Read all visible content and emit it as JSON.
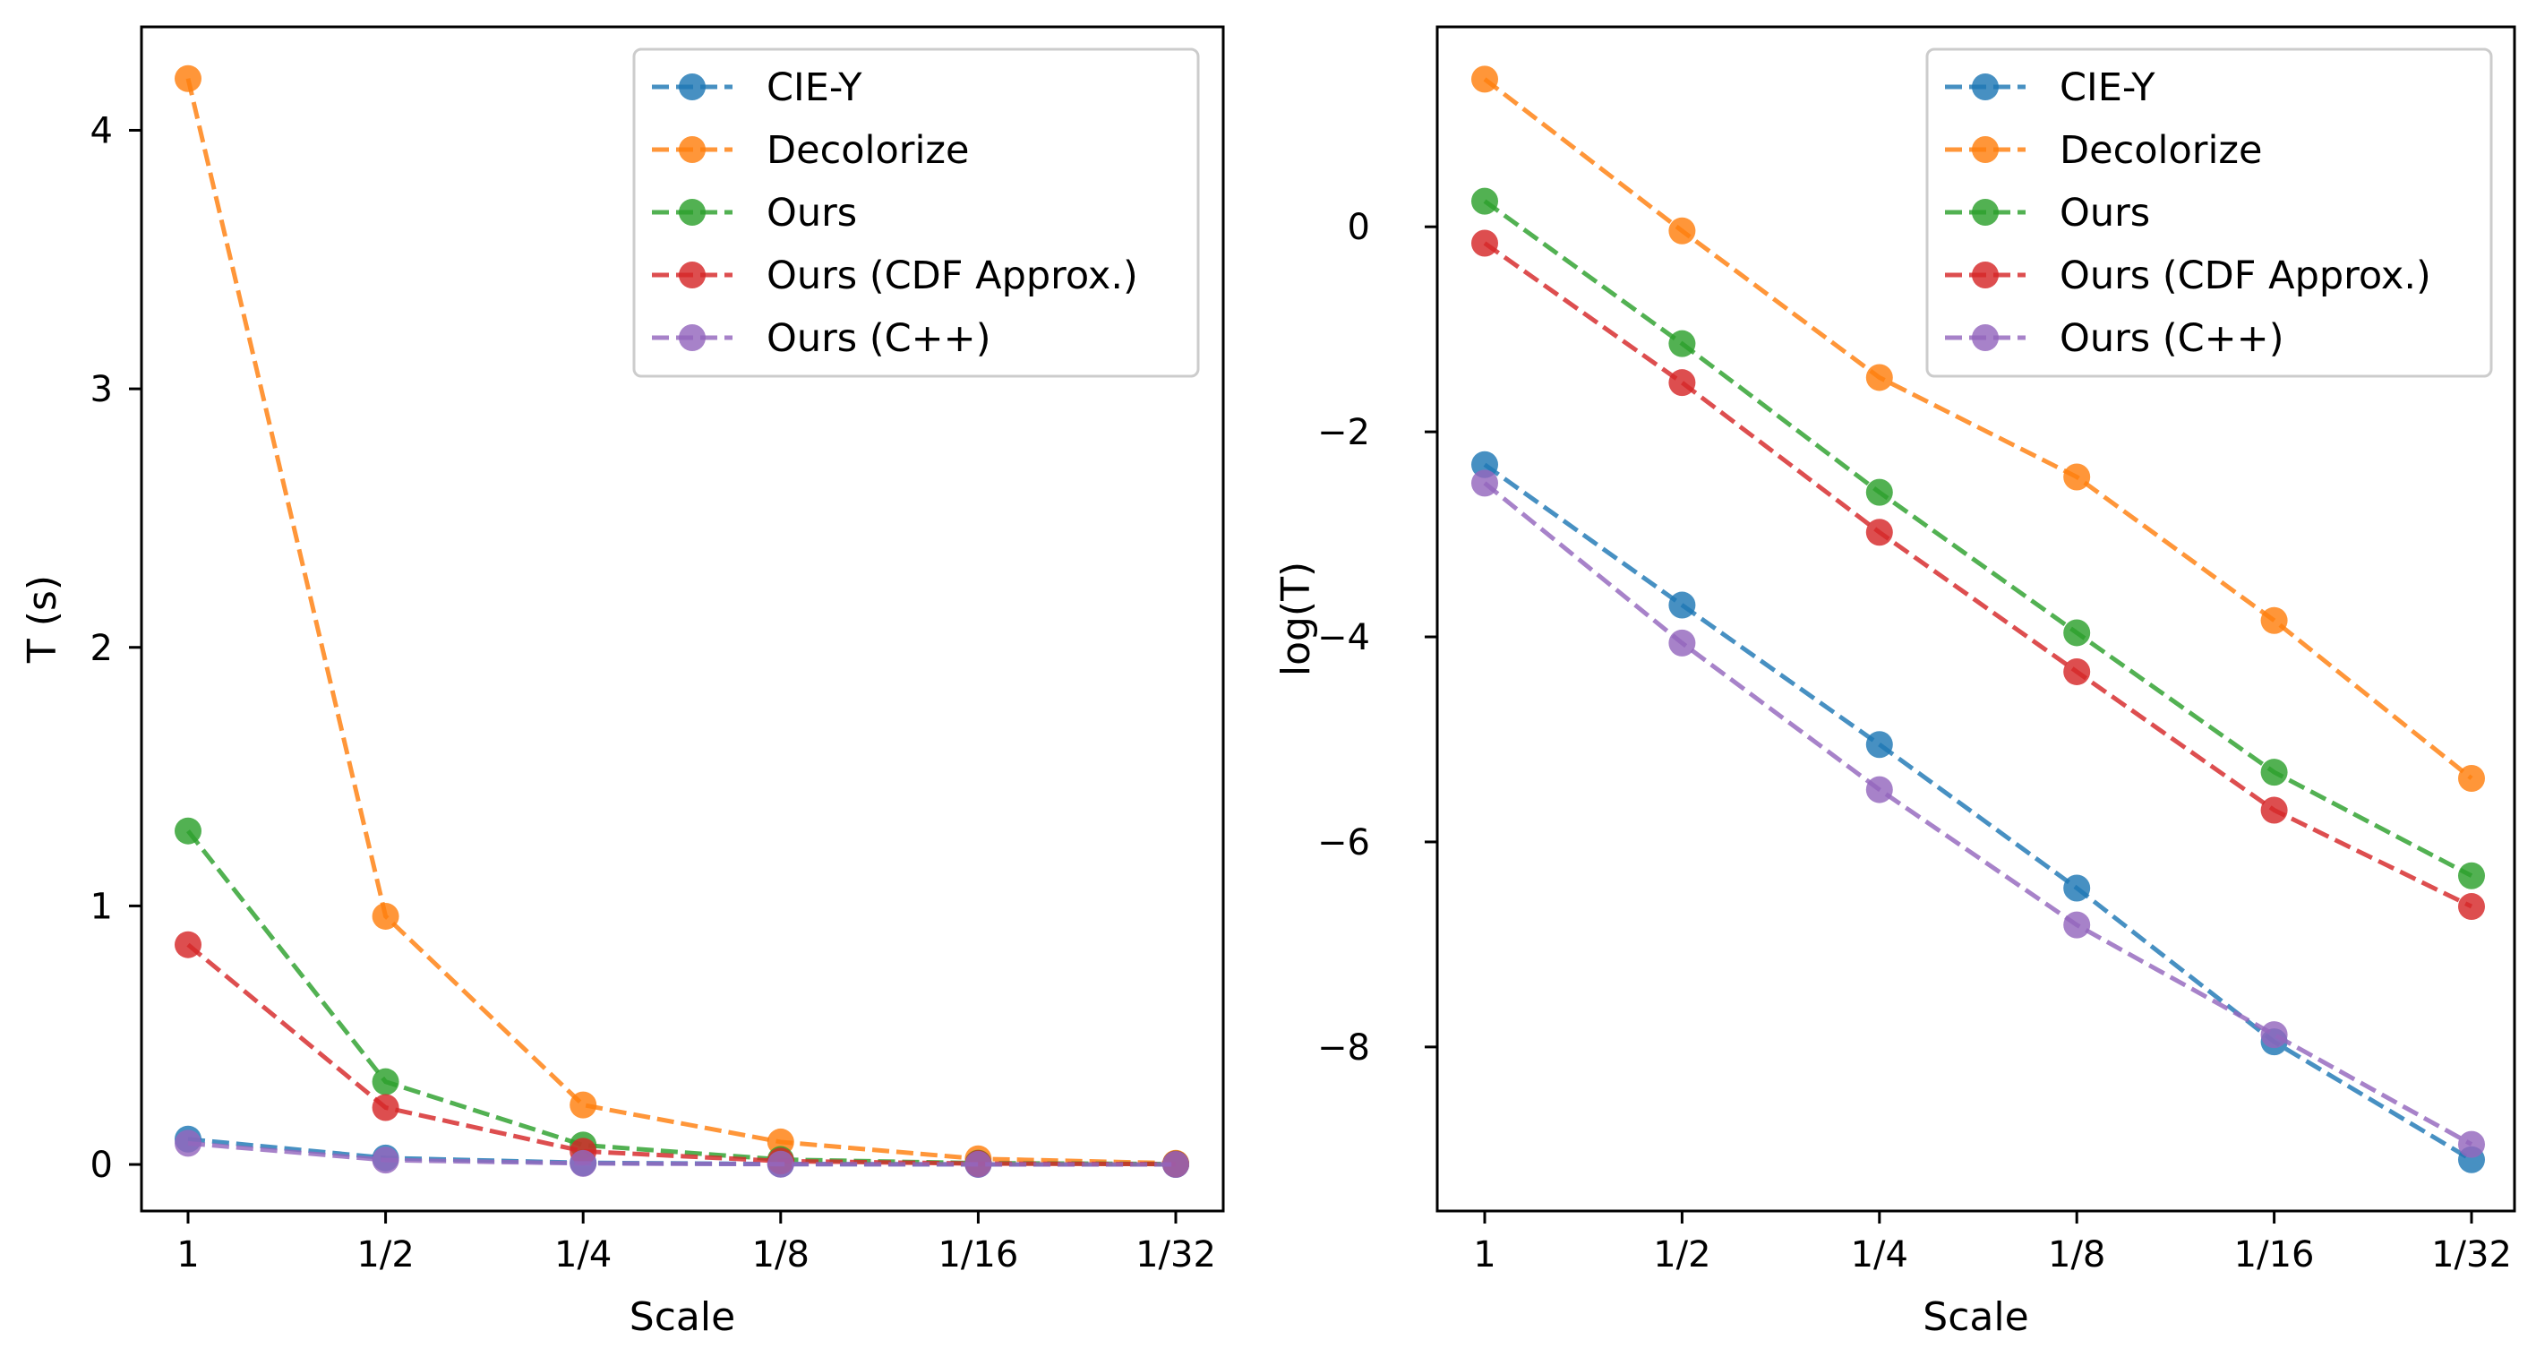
{
  "chart_data": [
    {
      "type": "line",
      "title": "",
      "xlabel": "Scale",
      "ylabel": "T (s)",
      "categories": [
        "1",
        "1/2",
        "1/4",
        "1/8",
        "1/16",
        "1/32"
      ],
      "ylim": [
        -0.18,
        4.4
      ],
      "yticks": [
        0,
        1,
        2,
        3,
        4
      ],
      "ytick_labels": [
        "0",
        "1",
        "2",
        "3",
        "4"
      ],
      "legend_position": "top-right",
      "series": [
        {
          "name": "CIE-Y",
          "color": "#1f77b4",
          "values": [
            0.098,
            0.025,
            0.0064,
            0.0016,
            0.00035,
            0.00011
          ]
        },
        {
          "name": "Decolorize",
          "color": "#ff7f0e",
          "values": [
            4.2,
            0.96,
            0.23,
            0.087,
            0.022,
            0.0046
          ]
        },
        {
          "name": "Ours",
          "color": "#2ca02c",
          "values": [
            1.29,
            0.32,
            0.075,
            0.019,
            0.0049,
            0.0018
          ]
        },
        {
          "name": "Ours (CDF Approx.)",
          "color": "#d62728",
          "values": [
            0.85,
            0.22,
            0.051,
            0.013,
            0.0034,
            0.0013
          ]
        },
        {
          "name": "Ours (C++)",
          "color": "#9467bd",
          "values": [
            0.082,
            0.017,
            0.0041,
            0.0011,
            0.00038,
            0.00013
          ]
        }
      ]
    },
    {
      "type": "line",
      "title": "",
      "xlabel": "Scale",
      "ylabel": "log(T)",
      "categories": [
        "1",
        "1/2",
        "1/4",
        "1/8",
        "1/16",
        "1/32"
      ],
      "ylim": [
        -9.6,
        1.95
      ],
      "yticks": [
        0,
        -2,
        -4,
        -6,
        -8
      ],
      "ytick_labels": [
        "0",
        "−2",
        "−4",
        "−6",
        "−8"
      ],
      "legend_position": "top-right",
      "series": [
        {
          "name": "CIE-Y",
          "color": "#1f77b4",
          "values": [
            -2.32,
            -3.69,
            -5.05,
            -6.45,
            -7.95,
            -9.1
          ]
        },
        {
          "name": "Decolorize",
          "color": "#ff7f0e",
          "values": [
            1.44,
            -0.04,
            -1.47,
            -2.44,
            -3.84,
            -5.38
          ]
        },
        {
          "name": "Ours",
          "color": "#2ca02c",
          "values": [
            0.25,
            -1.14,
            -2.59,
            -3.96,
            -5.32,
            -6.33
          ]
        },
        {
          "name": "Ours (CDF Approx.)",
          "color": "#d62728",
          "values": [
            -0.16,
            -1.52,
            -2.98,
            -4.34,
            -5.69,
            -6.63
          ]
        },
        {
          "name": "Ours (C++)",
          "color": "#9467bd",
          "values": [
            -2.5,
            -4.06,
            -5.49,
            -6.81,
            -7.88,
            -8.95
          ]
        }
      ]
    }
  ]
}
